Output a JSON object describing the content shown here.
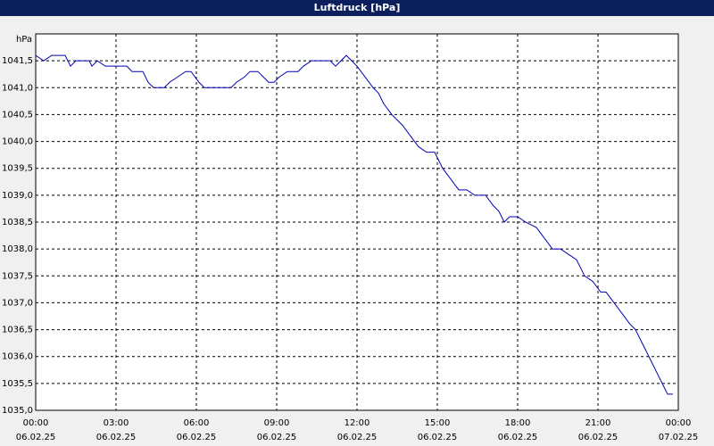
{
  "chart_data": {
    "type": "line",
    "title": "Luftdruck [hPa]",
    "y_label": "hPa",
    "x": [
      0,
      0.3,
      0.6,
      1.1,
      1.3,
      1.5,
      2.0,
      2.1,
      2.3,
      2.6,
      3.4,
      3.6,
      4.0,
      4.2,
      4.4,
      4.8,
      5.0,
      5.3,
      5.6,
      5.8,
      6.1,
      6.3,
      7.3,
      7.5,
      7.8,
      8.0,
      8.3,
      8.5,
      8.7,
      8.9,
      9.1,
      9.4,
      9.8,
      10.0,
      10.3,
      11.0,
      11.2,
      11.4,
      11.6,
      11.8,
      12.0,
      12.3,
      12.6,
      12.8,
      13.0,
      13.3,
      13.7,
      14.0,
      14.3,
      14.6,
      14.9,
      15.2,
      15.5,
      15.8,
      16.1,
      16.4,
      16.8,
      17.1,
      17.3,
      17.5,
      17.7,
      18.0,
      18.3,
      18.7,
      19.0,
      19.3,
      19.6,
      19.9,
      20.2,
      20.5,
      20.8,
      21.1,
      21.3,
      21.6,
      21.9,
      22.2,
      22.4,
      22.7,
      23.0,
      23.2,
      23.4,
      23.6,
      23.8
    ],
    "series": [
      {
        "name": "Luftdruck",
        "color": "#0000b4",
        "values": [
          1041.6,
          1041.5,
          1041.6,
          1041.6,
          1041.4,
          1041.5,
          1041.5,
          1041.4,
          1041.5,
          1041.4,
          1041.4,
          1041.3,
          1041.3,
          1041.1,
          1041.0,
          1041.0,
          1041.1,
          1041.2,
          1041.3,
          1041.3,
          1041.1,
          1041.0,
          1041.0,
          1041.1,
          1041.2,
          1041.3,
          1041.3,
          1041.2,
          1041.1,
          1041.1,
          1041.2,
          1041.3,
          1041.3,
          1041.4,
          1041.5,
          1041.5,
          1041.4,
          1041.5,
          1041.6,
          1041.5,
          1041.4,
          1041.2,
          1041.0,
          1040.9,
          1040.7,
          1040.5,
          1040.3,
          1040.1,
          1039.9,
          1039.8,
          1039.8,
          1039.5,
          1039.3,
          1039.1,
          1039.1,
          1039.0,
          1039.0,
          1038.8,
          1038.7,
          1038.5,
          1038.6,
          1038.6,
          1038.5,
          1038.4,
          1038.2,
          1038.0,
          1038.0,
          1037.9,
          1037.8,
          1037.5,
          1037.4,
          1037.2,
          1037.2,
          1037.0,
          1036.8,
          1036.6,
          1036.5,
          1036.2,
          1035.9,
          1035.7,
          1035.5,
          1035.3,
          1035.3
        ]
      }
    ],
    "xlim": [
      0,
      24
    ],
    "xticks": [
      {
        "value": 0,
        "label": "00:00"
      },
      {
        "value": 3,
        "label": "03:00"
      },
      {
        "value": 6,
        "label": "06:00"
      },
      {
        "value": 9,
        "label": "09:00"
      },
      {
        "value": 12,
        "label": "12:00"
      },
      {
        "value": 15,
        "label": "15:00"
      },
      {
        "value": 18,
        "label": "18:00"
      },
      {
        "value": 21,
        "label": "21:00"
      },
      {
        "value": 24,
        "label": "00:00"
      }
    ],
    "xtick_dates": [
      "06.02.25",
      "06.02.25",
      "06.02.25",
      "06.02.25",
      "06.02.25",
      "06.02.25",
      "06.02.25",
      "06.02.25",
      "07.02.25"
    ],
    "ylim": [
      1035,
      1042
    ],
    "yticks": [
      {
        "value": 1035,
        "label": "1035,0"
      },
      {
        "value": 1035.5,
        "label": "1035,5"
      },
      {
        "value": 1036,
        "label": "1036,0"
      },
      {
        "value": 1036.5,
        "label": "1036,5"
      },
      {
        "value": 1037,
        "label": "1037,0"
      },
      {
        "value": 1037.5,
        "label": "1037,5"
      },
      {
        "value": 1038,
        "label": "1038,0"
      },
      {
        "value": 1038.5,
        "label": "1038,5"
      },
      {
        "value": 1039,
        "label": "1039,0"
      },
      {
        "value": 1039.5,
        "label": "1039,5"
      },
      {
        "value": 1040,
        "label": "1040,0"
      },
      {
        "value": 1040.5,
        "label": "1040,5"
      },
      {
        "value": 1041,
        "label": "1041,0"
      },
      {
        "value": 1041.5,
        "label": "1041,5"
      }
    ],
    "grid": true
  }
}
